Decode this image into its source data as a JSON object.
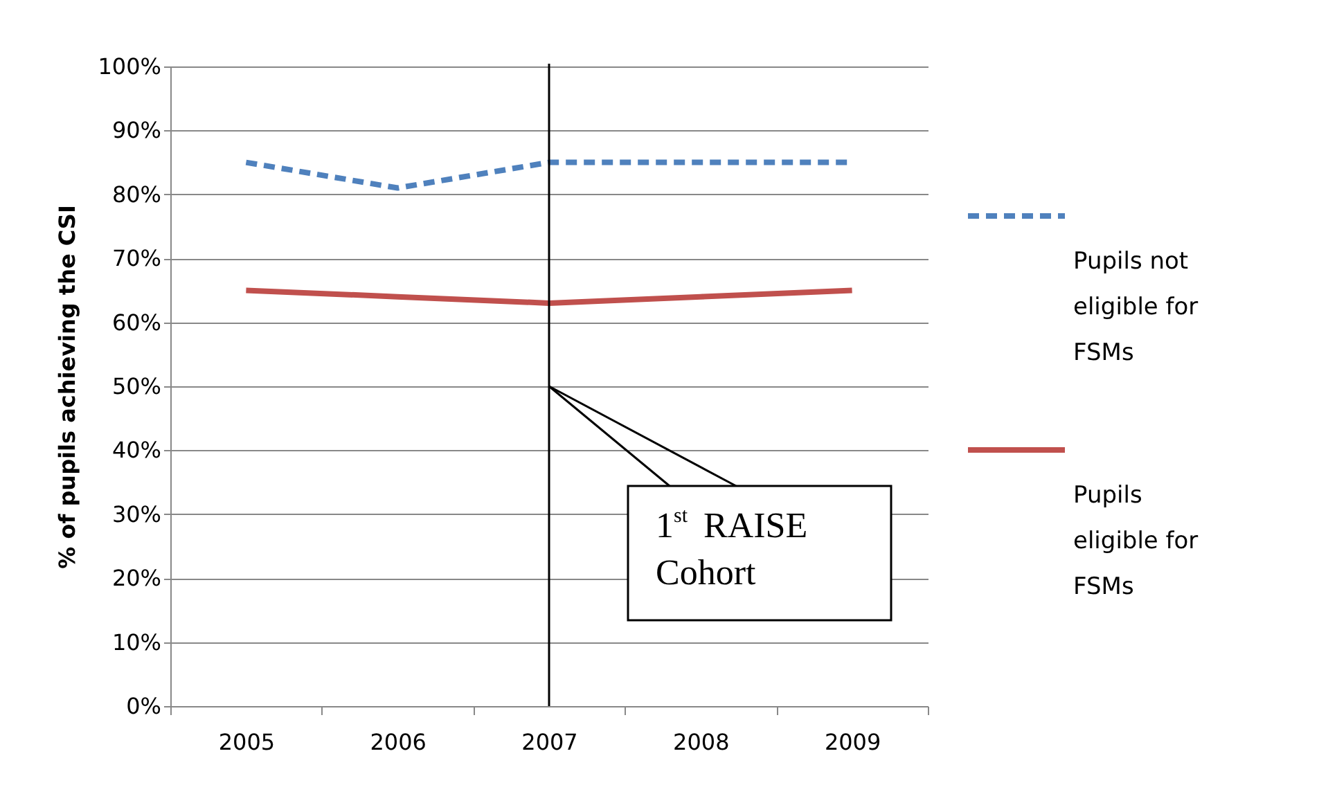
{
  "chart_data": {
    "type": "line",
    "categories": [
      "2005",
      "2006",
      "2007",
      "2008",
      "2009"
    ],
    "series": [
      {
        "name": "Pupils not eligible for FSMs",
        "color": "#4f81bd",
        "line_style": "dashed",
        "values": [
          85,
          81,
          85,
          85,
          85
        ]
      },
      {
        "name": "Pupils eligible for FSMs",
        "color": "#c0504d",
        "line_style": "solid",
        "values": [
          65,
          64,
          63,
          64,
          65
        ]
      }
    ],
    "ylabel": "% of pupils achieving the CSI",
    "ylim": [
      0,
      100
    ],
    "yticks": [
      {
        "value": 0,
        "label": "0%"
      },
      {
        "value": 10,
        "label": "10%"
      },
      {
        "value": 20,
        "label": "20%"
      },
      {
        "value": 30,
        "label": "30%"
      },
      {
        "value": 40,
        "label": "40%"
      },
      {
        "value": 50,
        "label": "50%"
      },
      {
        "value": 60,
        "label": "60%"
      },
      {
        "value": 70,
        "label": "70%"
      },
      {
        "value": 80,
        "label": "80%"
      },
      {
        "value": 90,
        "label": "90%"
      },
      {
        "value": 100,
        "label": "100%"
      }
    ],
    "ref_lines": [
      {
        "axis": "x",
        "value": "2007",
        "color": "#000000"
      }
    ],
    "annotations": [
      {
        "text": "1$^{st}$ RAISE Cohort",
        "x": "2007",
        "y": 50
      }
    ],
    "grid": "y",
    "legend": "right",
    "marker": "none"
  }
}
